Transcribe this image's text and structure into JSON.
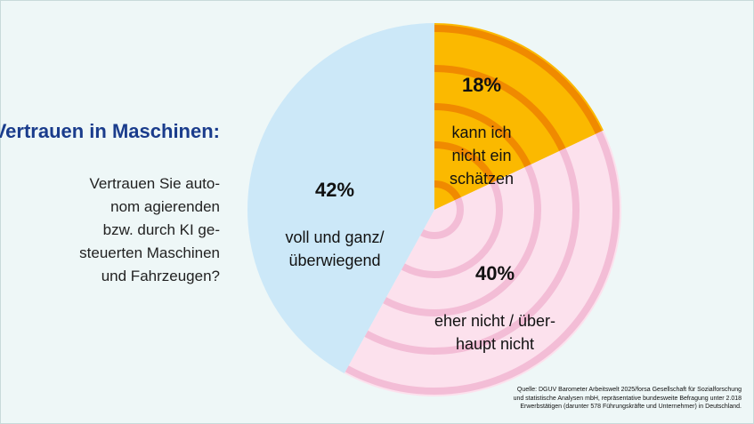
{
  "title": "Vertrauen in Maschinen:",
  "question": "Vertrauen Sie auto-\nnom agierenden\nbzw. durch KI ge-\nsteuerten Maschinen\nund Fahrzeugen?",
  "source": "Quelle: DGUV Barometer Arbeitswelt 2025/forsa Gesellschaft für Sozialforschung\nund statistische Analysen mbH, repräsentative bundesweite Befragung unter 2.018\nErwerbstätigen (darunter 578 Führungskräfte und Unternehmer) in Deutschland.",
  "chart_data": {
    "type": "pie",
    "start": "12 o'clock, clockwise",
    "slices": [
      {
        "label": "kann ich\nnicht ein\nschätzen",
        "value": 18,
        "value_label": "18%",
        "color": "#fbb900",
        "ring_color": "#f08a00"
      },
      {
        "label": "eher nicht / über-\nhaupt nicht",
        "value": 40,
        "value_label": "40%",
        "color": "#fce1ed",
        "ring_color": "#f3bdd6"
      },
      {
        "label": "voll und ganz/\nüberwiegend",
        "value": 42,
        "value_label": "42%",
        "color": "#cce8f8",
        "ring_color": null
      }
    ]
  }
}
